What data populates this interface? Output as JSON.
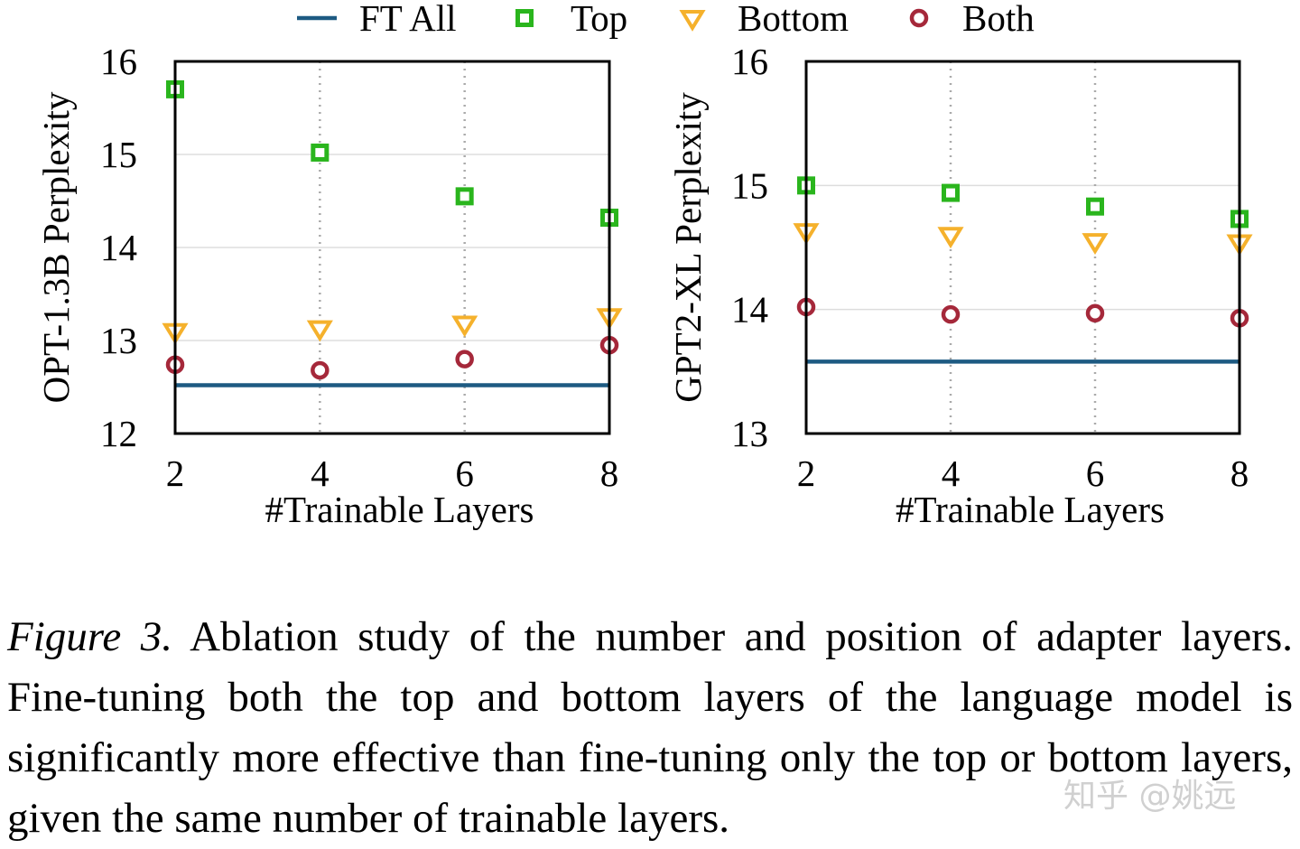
{
  "legend": [
    {
      "name": "FT All",
      "color": "#1d5a82",
      "marker": "line"
    },
    {
      "name": "Top",
      "color": "#2ab51d",
      "marker": "square"
    },
    {
      "name": "Bottom",
      "color": "#f5b12c",
      "marker": "triangle-down"
    },
    {
      "name": "Both",
      "color": "#a5283a",
      "marker": "circle"
    }
  ],
  "chart_data": [
    {
      "type": "scatter",
      "title": "",
      "xlabel": "#Trainable Layers",
      "ylabel": "OPT-1.3B Perplexity",
      "x": [
        2,
        4,
        6,
        8
      ],
      "xticks": [
        "2",
        "4",
        "6",
        "8"
      ],
      "yticks": [
        "12",
        "13",
        "14",
        "15",
        "16"
      ],
      "ylim": [
        12,
        16
      ],
      "grid": true,
      "series": [
        {
          "name": "FT All",
          "type": "hline",
          "value": 12.52
        },
        {
          "name": "Top",
          "values": [
            15.7,
            15.02,
            14.55,
            14.32
          ]
        },
        {
          "name": "Bottom",
          "values": [
            13.1,
            13.13,
            13.18,
            13.26
          ]
        },
        {
          "name": "Both",
          "values": [
            12.74,
            12.68,
            12.8,
            12.95
          ]
        }
      ]
    },
    {
      "type": "scatter",
      "title": "",
      "xlabel": "#Trainable Layers",
      "ylabel": "GPT2-XL Perplexity",
      "x": [
        2,
        4,
        6,
        8
      ],
      "xticks": [
        "2",
        "4",
        "6",
        "8"
      ],
      "yticks": [
        "13",
        "14",
        "15",
        "16"
      ],
      "ylim": [
        13,
        16
      ],
      "grid": true,
      "series": [
        {
          "name": "FT All",
          "type": "hline",
          "value": 13.58
        },
        {
          "name": "Top",
          "values": [
            15.0,
            14.94,
            14.83,
            14.73
          ]
        },
        {
          "name": "Bottom",
          "values": [
            14.63,
            14.6,
            14.55,
            14.54
          ]
        },
        {
          "name": "Both",
          "values": [
            14.02,
            13.96,
            13.97,
            13.93
          ]
        }
      ]
    }
  ],
  "caption": {
    "label": "Figure 3.",
    "text": "Ablation study of the number and position of adapter layers. Fine-tuning both the top and bottom layers of the language model is significantly more effective than fine-tuning only the top or bottom layers, given the same number of trainable layers."
  },
  "watermark": "知乎 @姚远"
}
